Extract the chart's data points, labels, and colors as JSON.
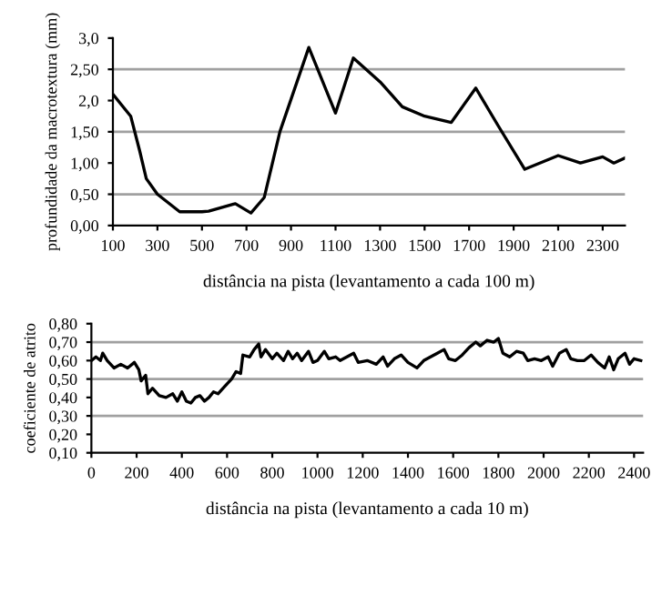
{
  "chart_data": [
    {
      "type": "line",
      "xlabel": "distância na pista (levantamento a cada 100 m)",
      "ylabel": "profundidade da macrotextura (mm)",
      "series": [
        {
          "color": "#000000",
          "x": [
            100,
            180,
            220,
            250,
            300,
            400,
            500,
            530,
            650,
            720,
            780,
            850,
            980,
            1100,
            1180,
            1300,
            1400,
            1500,
            1620,
            1730,
            1830,
            1950,
            2100,
            2200,
            2300,
            2350,
            2400
          ],
          "values": [
            2.1,
            1.75,
            1.2,
            0.75,
            0.5,
            0.22,
            0.22,
            0.23,
            0.35,
            0.2,
            0.45,
            1.5,
            2.85,
            1.8,
            2.68,
            2.3,
            1.9,
            1.75,
            1.65,
            2.2,
            1.6,
            0.9,
            1.12,
            1.0,
            1.1,
            1.0,
            1.08
          ]
        }
      ],
      "xlim": [
        100,
        2400
      ],
      "xticks": [
        100,
        300,
        500,
        700,
        900,
        1100,
        1300,
        1500,
        1700,
        1900,
        2100,
        2300
      ],
      "ylim": [
        0,
        3
      ],
      "yticks": [
        {
          "value": 0,
          "label": "0,00"
        },
        {
          "value": 0.5,
          "label": "0,50"
        },
        {
          "value": 1,
          "label": "1,00"
        },
        {
          "value": 1.5,
          "label": "1,50"
        },
        {
          "value": 2,
          "label": "2,0"
        },
        {
          "value": 2.5,
          "label": "2,50"
        },
        {
          "value": 3,
          "label": "3,0"
        }
      ],
      "ref_lines": [
        {
          "axis": "y",
          "value": 0.5,
          "color": "#a0a0a0"
        },
        {
          "axis": "y",
          "value": 1.5,
          "color": "#a0a0a0"
        },
        {
          "axis": "y",
          "value": 2.5,
          "color": "#a0a0a0"
        }
      ],
      "grid": false,
      "legend": false,
      "marker": "none",
      "line_style": "solid"
    },
    {
      "type": "line",
      "xlabel": "distância na pista (levantamento a cada 10 m)",
      "ylabel": "coeficiente de atrito",
      "series": [
        {
          "color": "#000000",
          "x": [
            0,
            20,
            40,
            50,
            70,
            100,
            130,
            160,
            190,
            210,
            220,
            240,
            250,
            270,
            300,
            330,
            360,
            380,
            400,
            420,
            440,
            460,
            480,
            500,
            520,
            540,
            560,
            590,
            620,
            640,
            660,
            670,
            700,
            720,
            740,
            750,
            770,
            800,
            820,
            850,
            870,
            890,
            910,
            930,
            960,
            980,
            1000,
            1030,
            1050,
            1080,
            1100,
            1130,
            1160,
            1180,
            1220,
            1260,
            1290,
            1310,
            1340,
            1370,
            1400,
            1440,
            1470,
            1500,
            1530,
            1560,
            1580,
            1610,
            1640,
            1670,
            1700,
            1720,
            1750,
            1780,
            1800,
            1820,
            1850,
            1880,
            1910,
            1930,
            1960,
            1990,
            2020,
            2040,
            2070,
            2100,
            2120,
            2150,
            2180,
            2210,
            2240,
            2270,
            2290,
            2310,
            2330,
            2360,
            2380,
            2400,
            2430
          ],
          "values": [
            0.6,
            0.62,
            0.6,
            0.64,
            0.6,
            0.56,
            0.58,
            0.56,
            0.59,
            0.55,
            0.49,
            0.52,
            0.42,
            0.45,
            0.41,
            0.4,
            0.42,
            0.38,
            0.43,
            0.38,
            0.37,
            0.4,
            0.41,
            0.38,
            0.4,
            0.43,
            0.42,
            0.46,
            0.5,
            0.54,
            0.53,
            0.63,
            0.62,
            0.66,
            0.69,
            0.62,
            0.66,
            0.61,
            0.64,
            0.6,
            0.65,
            0.61,
            0.64,
            0.6,
            0.65,
            0.59,
            0.6,
            0.65,
            0.61,
            0.62,
            0.6,
            0.62,
            0.64,
            0.59,
            0.6,
            0.58,
            0.62,
            0.57,
            0.61,
            0.63,
            0.59,
            0.56,
            0.6,
            0.62,
            0.64,
            0.66,
            0.61,
            0.6,
            0.63,
            0.67,
            0.7,
            0.68,
            0.71,
            0.7,
            0.72,
            0.64,
            0.62,
            0.65,
            0.64,
            0.6,
            0.61,
            0.6,
            0.62,
            0.57,
            0.64,
            0.66,
            0.61,
            0.6,
            0.6,
            0.63,
            0.59,
            0.56,
            0.62,
            0.55,
            0.61,
            0.64,
            0.58,
            0.61,
            0.6
          ]
        }
      ],
      "xlim": [
        0,
        2440
      ],
      "xticks": [
        0,
        200,
        400,
        600,
        800,
        1000,
        1200,
        1400,
        1600,
        1800,
        2000,
        2200,
        2400
      ],
      "ylim": [
        0.1,
        0.8
      ],
      "yticks": [
        {
          "value": 0.1,
          "label": "0,10"
        },
        {
          "value": 0.2,
          "label": "0,20"
        },
        {
          "value": 0.3,
          "label": "0,30"
        },
        {
          "value": 0.4,
          "label": "0,40"
        },
        {
          "value": 0.5,
          "label": "0,50"
        },
        {
          "value": 0.6,
          "label": "0,60"
        },
        {
          "value": 0.7,
          "label": "0,70"
        },
        {
          "value": 0.8,
          "label": "0,80"
        }
      ],
      "ref_lines": [
        {
          "axis": "y",
          "value": 0.3,
          "color": "#a0a0a0"
        },
        {
          "axis": "y",
          "value": 0.5,
          "color": "#a0a0a0"
        },
        {
          "axis": "y",
          "value": 0.7,
          "color": "#a0a0a0"
        }
      ],
      "grid": false,
      "legend": false,
      "marker": "none",
      "line_style": "solid"
    }
  ]
}
